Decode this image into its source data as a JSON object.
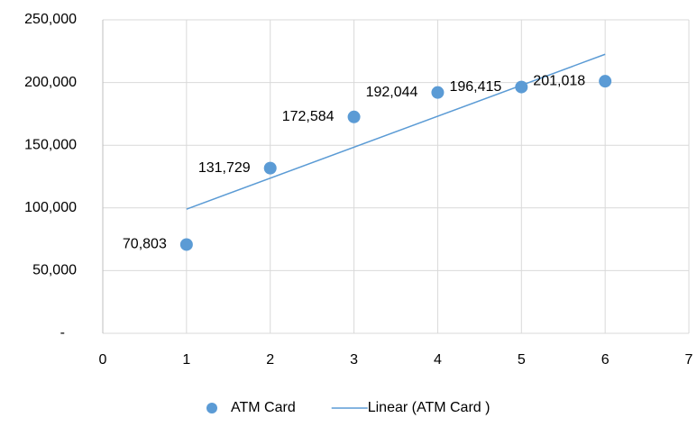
{
  "chart_data": {
    "type": "scatter",
    "series": [
      {
        "name": "ATM Card",
        "color": "#5b9bd5",
        "x": [
          1,
          2,
          3,
          4,
          5,
          6
        ],
        "values": [
          70803,
          131729,
          172584,
          192044,
          196415,
          201018
        ],
        "value_labels": [
          "70,803",
          "131,729",
          "172,584",
          "192,044",
          "196,415",
          "201,018"
        ]
      },
      {
        "name": "Linear (ATM Card )",
        "color": "#5b9bd5",
        "trendline": true,
        "x": [
          1,
          6
        ],
        "values": [
          99009,
          222522
        ]
      }
    ],
    "xlim": [
      0,
      7
    ],
    "xticks": [
      0,
      1,
      2,
      3,
      4,
      5,
      6,
      7
    ],
    "ylim": [
      0,
      250000
    ],
    "yticks": [
      {
        "value": 0,
        "label": "-"
      },
      {
        "value": 50000,
        "label": "50,000"
      },
      {
        "value": 100000,
        "label": "100,000"
      },
      {
        "value": 150000,
        "label": "150,000"
      },
      {
        "value": 200000,
        "label": "200,000"
      },
      {
        "value": 250000,
        "label": "250,000"
      }
    ],
    "grid": true,
    "legend": "bottom"
  }
}
